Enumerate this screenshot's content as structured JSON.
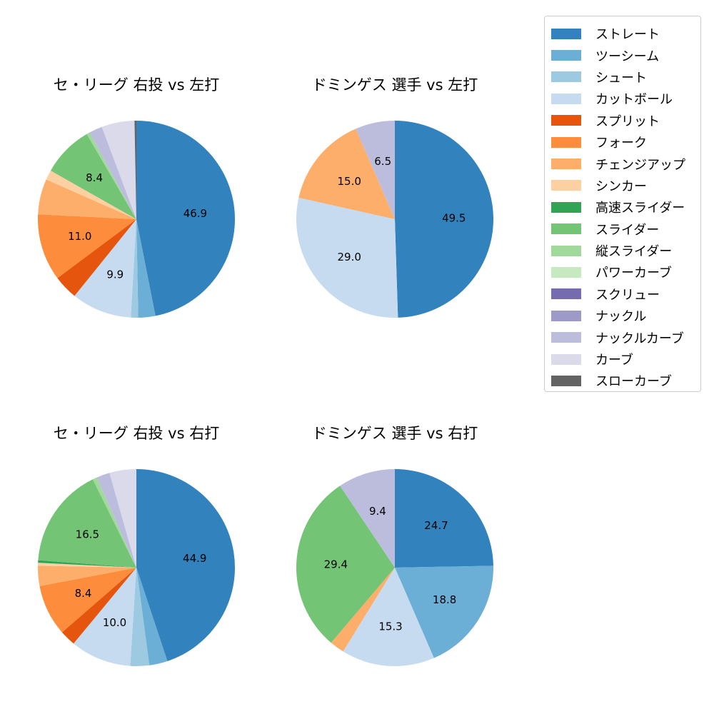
{
  "legend": {
    "items": [
      {
        "label": "ストレート",
        "color": "#3182bd"
      },
      {
        "label": "ツーシーム",
        "color": "#6baed6"
      },
      {
        "label": "シュート",
        "color": "#9ecae1"
      },
      {
        "label": "カットボール",
        "color": "#c6dbef"
      },
      {
        "label": "スプリット",
        "color": "#e6550d"
      },
      {
        "label": "フォーク",
        "color": "#fd8d3c"
      },
      {
        "label": "チェンジアップ",
        "color": "#fdae6b"
      },
      {
        "label": "シンカー",
        "color": "#fdd0a2"
      },
      {
        "label": "高速スライダー",
        "color": "#31a354"
      },
      {
        "label": "スライダー",
        "color": "#74c476"
      },
      {
        "label": "縦スライダー",
        "color": "#a1d99b"
      },
      {
        "label": "パワーカーブ",
        "color": "#c7e9c0"
      },
      {
        "label": "スクリュー",
        "color": "#756bb1"
      },
      {
        "label": "ナックル",
        "color": "#9e9ac8"
      },
      {
        "label": "ナックルカーブ",
        "color": "#bcbddc"
      },
      {
        "label": "カーブ",
        "color": "#dadaeb"
      },
      {
        "label": "スローカーブ",
        "color": "#636363"
      }
    ]
  },
  "chart_data": [
    {
      "type": "pie",
      "title": "セ・リーグ 右投 vs 左打",
      "categories": [
        "ストレート",
        "ツーシーム",
        "シュート",
        "カットボール",
        "スプリット",
        "フォーク",
        "チェンジアップ",
        "シンカー",
        "スライダー",
        "縦スライダー",
        "ナックルカーブ",
        "カーブ",
        "スローカーブ"
      ],
      "values": [
        46.9,
        2.8,
        1.2,
        9.9,
        4.0,
        11.0,
        5.8,
        1.6,
        8.4,
        0.5,
        2.2,
        5.4,
        0.3
      ],
      "labels_shown": [
        "46.9",
        "9.9",
        "11.0",
        "8.4"
      ],
      "start_angle": 90,
      "direction": "clockwise"
    },
    {
      "type": "pie",
      "title": "ドミンゲス 選手 vs 左打",
      "categories": [
        "ストレート",
        "カットボール",
        "チェンジアップ",
        "ナックルカーブ"
      ],
      "values": [
        49.5,
        29.0,
        15.0,
        6.5
      ],
      "labels_shown": [
        "49.5",
        "29.0",
        "15.0",
        "6.5"
      ],
      "start_angle": 90,
      "direction": "clockwise"
    },
    {
      "type": "pie",
      "title": "セ・リーグ 右投 vs 右打",
      "categories": [
        "ストレート",
        "ツーシーム",
        "シュート",
        "カットボール",
        "スプリット",
        "フォーク",
        "チェンジアップ",
        "シンカー",
        "高速スライダー",
        "スライダー",
        "縦スライダー",
        "ナックルカーブ",
        "カーブ"
      ],
      "values": [
        44.9,
        3.0,
        3.1,
        10.0,
        2.6,
        8.4,
        3.3,
        0.5,
        0.4,
        16.5,
        0.7,
        2.2,
        4.4
      ],
      "labels_shown": [
        "44.9",
        "10.0",
        "8.4",
        "16.5"
      ],
      "start_angle": 90,
      "direction": "clockwise"
    },
    {
      "type": "pie",
      "title": "ドミンゲス 選手 vs 右打",
      "categories": [
        "ストレート",
        "ツーシーム",
        "カットボール",
        "チェンジアップ",
        "スライダー",
        "ナックルカーブ"
      ],
      "values": [
        24.7,
        18.8,
        15.3,
        2.4,
        29.4,
        9.4
      ],
      "labels_shown": [
        "24.7",
        "18.8",
        "15.3",
        "29.4",
        "9.4"
      ],
      "start_angle": 90,
      "direction": "clockwise"
    }
  ]
}
